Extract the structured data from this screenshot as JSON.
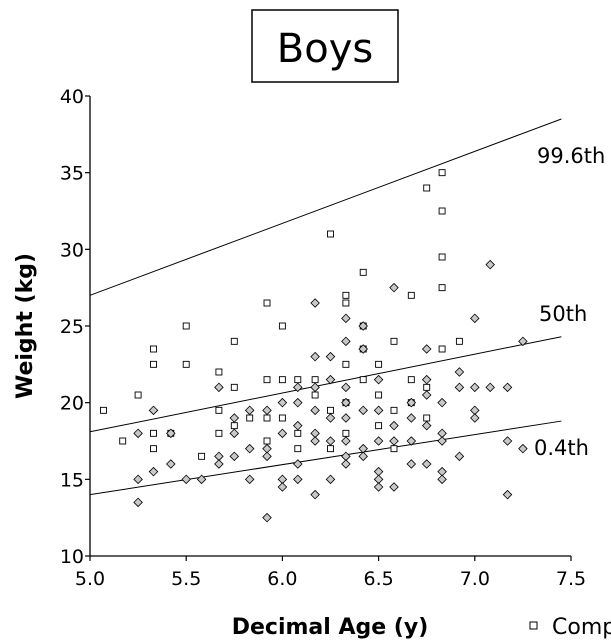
{
  "chart_data": {
    "type": "scatter",
    "title": "Boys",
    "xlabel": "Decimal Age (y)",
    "ylabel": "Weight (kg)",
    "xlim": [
      5.0,
      7.5
    ],
    "ylim": [
      10,
      40
    ],
    "x_ticks": [
      "5.0",
      "5.5",
      "6.0",
      "6.5",
      "7.0",
      "7.5"
    ],
    "y_ticks": [
      "10",
      "15",
      "20",
      "25",
      "30",
      "35",
      "40"
    ],
    "grid": false,
    "legend": {
      "placement": "bottom-right",
      "entries": [
        "Comp"
      ]
    },
    "reference_lines": [
      {
        "label": "99.6th",
        "points": [
          [
            5.0,
            27.0
          ],
          [
            7.45,
            38.5
          ]
        ]
      },
      {
        "label": "50th",
        "points": [
          [
            5.0,
            18.1
          ],
          [
            7.45,
            24.3
          ]
        ]
      },
      {
        "label": "0.4th",
        "points": [
          [
            5.0,
            14.0
          ],
          [
            7.45,
            18.8
          ]
        ]
      }
    ],
    "series": [
      {
        "name": "Comp",
        "marker": "square",
        "points": [
          [
            5.07,
            19.5
          ],
          [
            5.17,
            17.5
          ],
          [
            5.25,
            20.5
          ],
          [
            5.33,
            23.5
          ],
          [
            5.33,
            22.5
          ],
          [
            5.33,
            18.0
          ],
          [
            5.33,
            17.0
          ],
          [
            5.42,
            18.0
          ],
          [
            5.5,
            25.0
          ],
          [
            5.5,
            22.5
          ],
          [
            5.58,
            16.5
          ],
          [
            5.67,
            22.0
          ],
          [
            5.67,
            19.5
          ],
          [
            5.67,
            18.0
          ],
          [
            5.75,
            24.0
          ],
          [
            5.75,
            21.0
          ],
          [
            5.75,
            18.5
          ],
          [
            5.83,
            19.0
          ],
          [
            5.92,
            26.5
          ],
          [
            5.92,
            21.5
          ],
          [
            5.92,
            19.0
          ],
          [
            5.92,
            17.5
          ],
          [
            6.0,
            25.0
          ],
          [
            6.0,
            21.5
          ],
          [
            6.0,
            19.0
          ],
          [
            6.08,
            21.5
          ],
          [
            6.08,
            18.0
          ],
          [
            6.08,
            17.0
          ],
          [
            6.17,
            21.5
          ],
          [
            6.17,
            20.5
          ],
          [
            6.25,
            31.0
          ],
          [
            6.25,
            19.5
          ],
          [
            6.25,
            17.0
          ],
          [
            6.33,
            27.0
          ],
          [
            6.33,
            26.5
          ],
          [
            6.33,
            22.5
          ],
          [
            6.33,
            20.0
          ],
          [
            6.33,
            18.0
          ],
          [
            6.42,
            28.5
          ],
          [
            6.42,
            25.0
          ],
          [
            6.42,
            23.5
          ],
          [
            6.42,
            21.5
          ],
          [
            6.5,
            22.5
          ],
          [
            6.5,
            20.5
          ],
          [
            6.5,
            18.5
          ],
          [
            6.58,
            24.0
          ],
          [
            6.58,
            19.5
          ],
          [
            6.58,
            17.0
          ],
          [
            6.67,
            27.0
          ],
          [
            6.67,
            21.5
          ],
          [
            6.67,
            20.0
          ],
          [
            6.75,
            34.0
          ],
          [
            6.75,
            21.0
          ],
          [
            6.75,
            19.0
          ],
          [
            6.83,
            35.0
          ],
          [
            6.83,
            32.5
          ],
          [
            6.83,
            29.5
          ],
          [
            6.83,
            27.5
          ],
          [
            6.83,
            23.5
          ],
          [
            6.92,
            24.0
          ]
        ]
      },
      {
        "name": "",
        "marker": "diamond",
        "points": [
          [
            5.25,
            18.0
          ],
          [
            5.25,
            15.0
          ],
          [
            5.25,
            13.5
          ],
          [
            5.33,
            19.5
          ],
          [
            5.33,
            15.5
          ],
          [
            5.42,
            18.0
          ],
          [
            5.42,
            16.0
          ],
          [
            5.5,
            15.0
          ],
          [
            5.58,
            15.0
          ],
          [
            5.67,
            21.0
          ],
          [
            5.67,
            16.5
          ],
          [
            5.67,
            16.0
          ],
          [
            5.75,
            19.0
          ],
          [
            5.75,
            18.0
          ],
          [
            5.75,
            16.5
          ],
          [
            5.83,
            19.5
          ],
          [
            5.83,
            17.0
          ],
          [
            5.83,
            15.0
          ],
          [
            5.92,
            19.5
          ],
          [
            5.92,
            17.0
          ],
          [
            5.92,
            16.5
          ],
          [
            5.92,
            12.5
          ],
          [
            6.0,
            20.0
          ],
          [
            6.0,
            18.0
          ],
          [
            6.0,
            15.0
          ],
          [
            6.0,
            14.5
          ],
          [
            6.08,
            21.0
          ],
          [
            6.08,
            20.0
          ],
          [
            6.08,
            18.5
          ],
          [
            6.08,
            16.0
          ],
          [
            6.08,
            15.0
          ],
          [
            6.17,
            26.5
          ],
          [
            6.17,
            23.0
          ],
          [
            6.17,
            21.0
          ],
          [
            6.17,
            19.5
          ],
          [
            6.17,
            18.0
          ],
          [
            6.17,
            17.5
          ],
          [
            6.17,
            14.0
          ],
          [
            6.25,
            23.0
          ],
          [
            6.25,
            21.5
          ],
          [
            6.25,
            19.0
          ],
          [
            6.25,
            17.5
          ],
          [
            6.25,
            15.0
          ],
          [
            6.33,
            25.5
          ],
          [
            6.33,
            24.0
          ],
          [
            6.33,
            21.0
          ],
          [
            6.33,
            20.0
          ],
          [
            6.33,
            19.0
          ],
          [
            6.33,
            17.5
          ],
          [
            6.33,
            16.5
          ],
          [
            6.33,
            16.0
          ],
          [
            6.42,
            25.0
          ],
          [
            6.42,
            23.5
          ],
          [
            6.42,
            19.5
          ],
          [
            6.42,
            17.0
          ],
          [
            6.42,
            16.5
          ],
          [
            6.5,
            21.5
          ],
          [
            6.5,
            19.5
          ],
          [
            6.5,
            17.5
          ],
          [
            6.5,
            15.5
          ],
          [
            6.5,
            15.0
          ],
          [
            6.5,
            14.5
          ],
          [
            6.58,
            27.5
          ],
          [
            6.58,
            18.5
          ],
          [
            6.58,
            17.5
          ],
          [
            6.58,
            14.5
          ],
          [
            6.67,
            20.0
          ],
          [
            6.67,
            19.0
          ],
          [
            6.67,
            17.5
          ],
          [
            6.67,
            16.0
          ],
          [
            6.75,
            23.5
          ],
          [
            6.75,
            21.5
          ],
          [
            6.75,
            20.5
          ],
          [
            6.75,
            18.5
          ],
          [
            6.75,
            16.0
          ],
          [
            6.83,
            20.0
          ],
          [
            6.83,
            18.0
          ],
          [
            6.83,
            17.5
          ],
          [
            6.83,
            15.5
          ],
          [
            6.83,
            15.0
          ],
          [
            6.92,
            22.0
          ],
          [
            6.92,
            21.0
          ],
          [
            6.92,
            16.5
          ],
          [
            7.0,
            25.5
          ],
          [
            7.0,
            21.0
          ],
          [
            7.0,
            19.5
          ],
          [
            7.0,
            19.0
          ],
          [
            7.08,
            29.0
          ],
          [
            7.08,
            21.0
          ],
          [
            7.17,
            21.0
          ],
          [
            7.17,
            17.5
          ],
          [
            7.17,
            14.0
          ],
          [
            7.25,
            24.0
          ],
          [
            7.25,
            17.0
          ]
        ]
      }
    ]
  }
}
